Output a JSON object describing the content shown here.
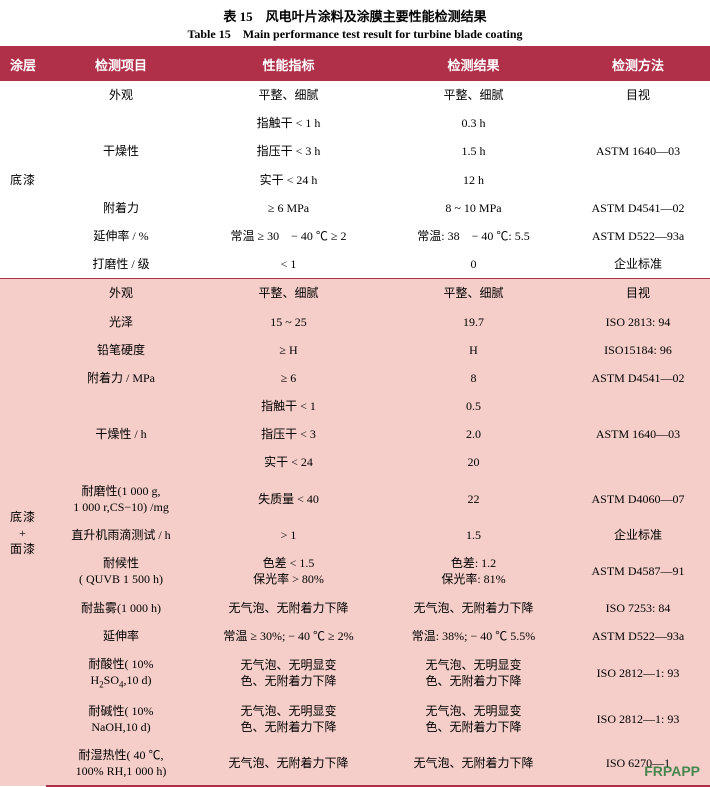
{
  "title": {
    "cn": "表 15　风电叶片涂料及涂膜主要性能检测结果",
    "en": "Table 15　Main performance test result for turbine blade coating"
  },
  "columns": {
    "layer": "涂层",
    "item": "检测项目",
    "spec": "性能指标",
    "result": "检测结果",
    "method": "检测方法"
  },
  "sections": [
    {
      "layer_label": "底漆",
      "css": "section-primer",
      "rows": [
        {
          "item": "外观",
          "spec": "平整、细腻",
          "result": "平整、细腻",
          "method": "目视",
          "item_rowspan": 1
        },
        {
          "item": "干燥性",
          "item_rowspan": 3,
          "sub": [
            {
              "spec": "指触干 < 1 h",
              "result": "0.3 h",
              "method": ""
            },
            {
              "spec": "指压干 < 3 h",
              "result": "1.5 h",
              "method": "ASTM 1640—03"
            },
            {
              "spec": "实干 < 24 h",
              "result": "12 h",
              "method": ""
            }
          ]
        },
        {
          "item": "附着力",
          "spec": "≥ 6 MPa",
          "result": "8 ~ 10 MPa",
          "method": "ASTM D4541—02"
        },
        {
          "item": "延伸率 / %",
          "spec": "常温 ≥ 30　− 40 ℃ ≥ 2",
          "result": "常温: 38　− 40 ℃: 5.5",
          "method": "ASTM D522—93a"
        },
        {
          "item": "打磨性 / 级",
          "spec": "< 1",
          "result": "0",
          "method": "企业标准"
        }
      ]
    },
    {
      "layer_label": "底漆\n+\n面漆",
      "css": "section-system",
      "rows": [
        {
          "item": "外观",
          "spec": "平整、细腻",
          "result": "平整、细腻",
          "method": "目视"
        },
        {
          "item": "光泽",
          "spec": "15 ~ 25",
          "result": "19.7",
          "method": "ISO 2813: 94"
        },
        {
          "item": "铅笔硬度",
          "spec": "≥ H",
          "result": "H",
          "method": "ISO15184: 96"
        },
        {
          "item": "附着力 / MPa",
          "spec": "≥ 6",
          "result": "8",
          "method": "ASTM D4541—02"
        },
        {
          "item": "干燥性 / h",
          "item_rowspan": 3,
          "sub": [
            {
              "spec": "指触干 < 1",
              "result": "0.5",
              "method": ""
            },
            {
              "spec": "指压干 < 3",
              "result": "2.0",
              "method": "ASTM 1640—03"
            },
            {
              "spec": "实干 < 24",
              "result": "20",
              "method": ""
            }
          ]
        },
        {
          "item": "耐磨性(1 000 g,\n1 000 r,CS−10) /mg",
          "spec": "失质量 < 40",
          "result": "22",
          "method": "ASTM D4060—07"
        },
        {
          "item": "直升机雨滴测试 / h",
          "spec": "> 1",
          "result": "1.5",
          "method": "企业标准"
        },
        {
          "item": "耐候性\n( QUVB 1 500 h)",
          "spec": "色差 < 1.5\n保光率 > 80%",
          "result": "色差: 1.2\n保光率: 81%",
          "method": "ASTM D4587—91"
        },
        {
          "item": "耐盐雾(1 000 h)",
          "spec": "无气泡、无附着力下降",
          "result": "无气泡、无附着力下降",
          "method": "ISO 7253: 84"
        },
        {
          "item": "延伸率",
          "spec": "常温 ≥ 30%; − 40 ℃ ≥ 2%",
          "result": "常温: 38%; − 40 ℃ 5.5%",
          "method": "ASTM D522—93a"
        },
        {
          "item": "耐酸性( 10%\nH2SO4,10 d)",
          "spec": "无气泡、无明显变\n色、无附着力下降",
          "result": "无气泡、无明显变\n色、无附着力下降",
          "method": "ISO 2812—1: 93",
          "html_item": true
        },
        {
          "item": "耐碱性( 10%\nNaOH,10 d)",
          "spec": "无气泡、无明显变\n色、无附着力下降",
          "result": "无气泡、无明显变\n色、无附着力下降",
          "method": "ISO 2812—1: 93"
        },
        {
          "item": "耐湿热性( 40 ℃,\n100% RH,1 000 h)",
          "spec": "无气泡、无附着力下降",
          "result": "无气泡、无附着力下降",
          "method": "ISO 6270—1"
        }
      ]
    }
  ],
  "watermark": "FRPAPP"
}
